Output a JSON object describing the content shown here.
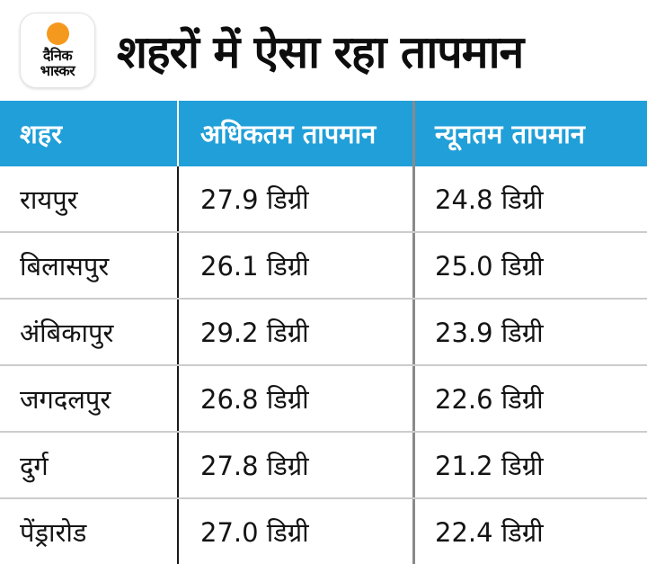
{
  "brand": {
    "name": "dainik-bhaskar-logo",
    "line1": "दैनिक",
    "line2": "भास्कर",
    "dot_color": "#F5991E"
  },
  "title": "शहरों में ऐसा रहा तापमान",
  "table": {
    "columns": {
      "city": "शहर",
      "max": "अधिकतम तापमान",
      "min": "न्यूनतम तापमान"
    },
    "rows": [
      {
        "city": "रायपुर",
        "max": "27.9 डिग्री",
        "min": "24.8 डिग्री"
      },
      {
        "city": "बिलासपुर",
        "max": "26.1 डिग्री",
        "min": "25.0 डिग्री"
      },
      {
        "city": "अंबिकापुर",
        "max": "29.2 डिग्री",
        "min": "23.9 डिग्री"
      },
      {
        "city": "जगदलपुर",
        "max": "26.8 डिग्री",
        "min": "22.6 डिग्री"
      },
      {
        "city": "दुर्ग",
        "max": "27.8 डिग्री",
        "min": "21.2 डिग्री"
      },
      {
        "city": "पेंड्रारोड",
        "max": "27.0 डिग्री",
        "min": "22.4 डिग्री"
      }
    ]
  },
  "colors": {
    "header_bg": "#219FD9",
    "header_text": "#FFFFFF",
    "body_text": "#141414",
    "divider_black": "#1A1A1A",
    "divider_gray": "#8A8A8A",
    "row_divider": "#CCCCCC",
    "logo_dot": "#F5991E"
  },
  "chart_data": {
    "type": "table",
    "title": "शहरों में ऐसा रहा तापमान",
    "columns": [
      "शहर",
      "अधिकतम तापमान",
      "न्यूनतम तापमान"
    ],
    "rows": [
      [
        "रायपुर",
        "27.9 डिग्री",
        "24.8 डिग्री"
      ],
      [
        "बिलासपुर",
        "26.1 डिग्री",
        "25.0 डिग्री"
      ],
      [
        "अंबिकापुर",
        "29.2 डिग्री",
        "23.9 डिग्री"
      ],
      [
        "जगदलपुर",
        "26.8 डिग्री",
        "22.6 डिग्री"
      ],
      [
        "दुर्ग",
        "27.8 डिग्री",
        "21.2 डिग्री"
      ],
      [
        "पेंड्रारोड",
        "27.0 डिग्री",
        "22.4 डिग्री"
      ]
    ],
    "series": [
      {
        "name": "अधिकतम तापमान (डिग्री)",
        "values": [
          27.9,
          26.1,
          29.2,
          26.8,
          27.8,
          27.0
        ]
      },
      {
        "name": "न्यूनतम तापमान (डिग्री)",
        "values": [
          24.8,
          25.0,
          23.9,
          22.6,
          21.2,
          22.4
        ]
      }
    ],
    "categories": [
      "रायपुर",
      "बिलासपुर",
      "अंबिकापुर",
      "जगदलपुर",
      "दुर्ग",
      "पेंड्रारोड"
    ]
  }
}
